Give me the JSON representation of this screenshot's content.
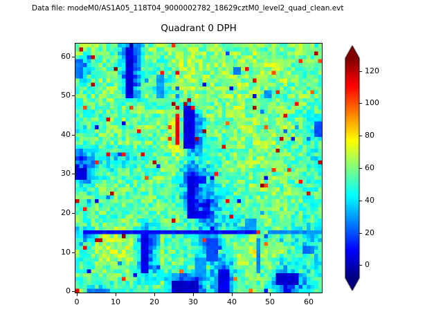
{
  "header": {
    "data_file_label": "Data file: modeM0/AS1A05_118T04_9000002782_18629cztM0_level2_quad_clean.evt"
  },
  "chart_data": {
    "type": "heatmap",
    "title": "Quadrant 0 DPH",
    "xlabel": "",
    "ylabel": "",
    "nx": 64,
    "ny": 64,
    "xlim": [
      -0.5,
      63.5
    ],
    "ylim": [
      -0.5,
      63.5
    ],
    "x_ticks": [
      0,
      10,
      20,
      30,
      40,
      50,
      60
    ],
    "y_ticks": [
      0,
      10,
      20,
      30,
      40,
      50,
      60
    ],
    "colormap": "jet",
    "value_range": [
      -8,
      128
    ],
    "background_level_range": [
      40,
      75
    ],
    "colorbar": {
      "ticks": [
        0,
        20,
        40,
        60,
        80,
        100,
        120
      ],
      "extend": "both",
      "under_color": "#000080",
      "over_color": "#800000"
    },
    "synthesis": {
      "note": "base_grid is a 16x16 downsampled estimate of the 64x64 detector plane image, row 0 = top (y=60..63), col 0 = left (x=0..3); features/hot_pixels are visually prominent low/high regions in data coords (y up).",
      "seed": 7,
      "noise_amp": 13,
      "hot_prob": 0.012,
      "cold_prob": 0.014,
      "base_grid": [
        [
          62,
          55,
          52,
          8,
          58,
          62,
          66,
          60,
          63,
          58,
          60,
          63,
          58,
          60,
          63,
          55
        ],
        [
          35,
          58,
          52,
          10,
          60,
          50,
          63,
          66,
          60,
          63,
          58,
          60,
          66,
          58,
          60,
          58
        ],
        [
          48,
          60,
          55,
          8,
          55,
          42,
          60,
          63,
          58,
          60,
          63,
          58,
          60,
          63,
          55,
          52
        ],
        [
          55,
          58,
          60,
          30,
          58,
          48,
          55,
          63,
          60,
          58,
          63,
          60,
          58,
          52,
          60,
          55
        ],
        [
          55,
          52,
          58,
          60,
          55,
          60,
          55,
          28,
          58,
          60,
          63,
          58,
          60,
          58,
          55,
          52
        ],
        [
          50,
          55,
          58,
          55,
          60,
          58,
          68,
          14,
          55,
          58,
          60,
          63,
          58,
          60,
          55,
          45
        ],
        [
          52,
          58,
          55,
          58,
          55,
          60,
          72,
          12,
          50,
          55,
          58,
          60,
          63,
          58,
          55,
          50
        ],
        [
          22,
          45,
          42,
          46,
          50,
          55,
          58,
          45,
          52,
          55,
          58,
          60,
          58,
          55,
          52,
          48
        ],
        [
          14,
          50,
          52,
          55,
          55,
          58,
          55,
          12,
          42,
          55,
          58,
          60,
          58,
          60,
          55,
          50
        ],
        [
          50,
          55,
          58,
          55,
          58,
          55,
          52,
          12,
          38,
          52,
          55,
          58,
          60,
          58,
          55,
          52
        ],
        [
          52,
          55,
          52,
          55,
          55,
          58,
          55,
          14,
          16,
          50,
          55,
          58,
          55,
          60,
          55,
          52
        ],
        [
          55,
          58,
          55,
          58,
          52,
          55,
          58,
          48,
          30,
          45,
          42,
          55,
          58,
          55,
          52,
          50
        ],
        [
          32,
          62,
          66,
          62,
          14,
          55,
          52,
          50,
          32,
          50,
          55,
          58,
          55,
          52,
          45,
          36
        ],
        [
          55,
          66,
          70,
          68,
          12,
          58,
          55,
          52,
          26,
          55,
          66,
          70,
          66,
          55,
          48,
          45
        ],
        [
          50,
          60,
          62,
          58,
          22,
          55,
          58,
          50,
          48,
          16,
          55,
          60,
          55,
          36,
          50,
          48
        ],
        [
          55,
          45,
          55,
          52,
          50,
          55,
          10,
          4,
          42,
          10,
          52,
          55,
          50,
          6,
          32,
          50
        ]
      ],
      "features": [
        {
          "x": 13,
          "y": 50,
          "w": 2,
          "h": 13,
          "v": 4
        },
        {
          "x": 17,
          "y": 5,
          "w": 2,
          "h": 10,
          "v": 6
        },
        {
          "x": 2,
          "y": 15,
          "w": 45,
          "h": 1,
          "v": 10
        },
        {
          "x": 50,
          "y": 15,
          "w": 13,
          "h": 1,
          "v": 28
        },
        {
          "x": 25,
          "y": 0,
          "w": 7,
          "h": 3,
          "v": 2
        },
        {
          "x": 37,
          "y": 0,
          "w": 3,
          "h": 6,
          "v": 6
        },
        {
          "x": 52,
          "y": 2,
          "w": 6,
          "h": 3,
          "v": 3
        },
        {
          "x": 28,
          "y": 37,
          "w": 3,
          "h": 11,
          "v": 5
        },
        {
          "x": 26,
          "y": 38,
          "w": 1,
          "h": 8,
          "v": 112
        },
        {
          "x": 29,
          "y": 19,
          "w": 2,
          "h": 11,
          "v": 5
        },
        {
          "x": 31,
          "y": 19,
          "w": 3,
          "h": 2,
          "v": 8
        },
        {
          "x": 31,
          "y": 28,
          "w": 3,
          "h": 2,
          "v": 12
        },
        {
          "x": 0,
          "y": 29,
          "w": 3,
          "h": 3,
          "v": 4
        },
        {
          "x": 34,
          "y": 8,
          "w": 3,
          "h": 6,
          "v": 18
        },
        {
          "x": 21,
          "y": 50,
          "w": 2,
          "h": 6,
          "v": 30
        },
        {
          "x": 0,
          "y": 55,
          "w": 2,
          "h": 5,
          "v": 25
        },
        {
          "x": 44,
          "y": 16,
          "w": 3,
          "h": 3,
          "v": 30
        },
        {
          "x": 47,
          "y": 5,
          "w": 1,
          "h": 9,
          "v": 28
        },
        {
          "x": 41,
          "y": 56,
          "w": 2,
          "h": 2,
          "v": 25
        },
        {
          "x": 49,
          "y": 50,
          "w": 2,
          "h": 2,
          "v": 28
        },
        {
          "x": 59,
          "y": 10,
          "w": 3,
          "h": 2,
          "v": 25
        },
        {
          "x": 62,
          "y": 40,
          "w": 2,
          "h": 4,
          "v": 20
        },
        {
          "x": 3,
          "y": 0,
          "w": 6,
          "h": 1,
          "v": 25
        },
        {
          "x": 31,
          "y": 4,
          "w": 3,
          "h": 5,
          "v": 30
        }
      ],
      "hot_pixels": [
        {
          "x": 1,
          "y": 62,
          "v": 118
        },
        {
          "x": 0,
          "y": 0,
          "v": 115
        },
        {
          "x": 28,
          "y": 48,
          "v": 122
        },
        {
          "x": 29,
          "y": 49,
          "v": 118
        },
        {
          "x": 30,
          "y": 47,
          "v": 110
        },
        {
          "x": 47,
          "y": 15,
          "v": 105
        },
        {
          "x": 63,
          "y": 33,
          "v": 120
        },
        {
          "x": 22,
          "y": 56,
          "v": 108
        },
        {
          "x": 44,
          "y": 57,
          "v": 112
        },
        {
          "x": 16,
          "y": 41,
          "v": 110
        },
        {
          "x": 8,
          "y": 44,
          "v": 115
        },
        {
          "x": 58,
          "y": 59,
          "v": 105
        },
        {
          "x": 36,
          "y": 30,
          "v": 108
        },
        {
          "x": 12,
          "y": 3,
          "v": 105
        },
        {
          "x": 49,
          "y": 27,
          "v": 102
        },
        {
          "x": 26,
          "y": 47,
          "v": 118
        },
        {
          "x": 55,
          "y": 31,
          "v": 104
        },
        {
          "x": 5,
          "y": 33,
          "v": 106
        }
      ]
    }
  }
}
